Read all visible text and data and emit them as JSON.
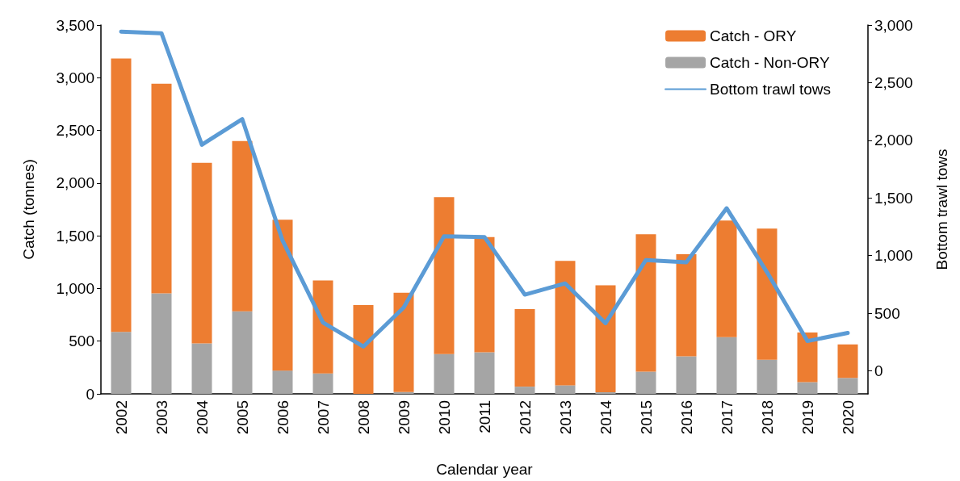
{
  "chart_data": {
    "type": "bar",
    "stacked": true,
    "xlabel": "Calendar year",
    "ylabel": "Catch (tonnes)",
    "y2label": "Bottom trawl tows",
    "categories": [
      "2002",
      "2003",
      "2004",
      "2005",
      "2006",
      "2007",
      "2008",
      "2009",
      "2010",
      "2011",
      "2012",
      "2013",
      "2014",
      "2015",
      "2016",
      "2017",
      "2018",
      "2019",
      "2020"
    ],
    "series": [
      {
        "name": "Catch - Non-ORY",
        "color": "#a5a5a5",
        "values": [
          588,
          953,
          478,
          784,
          221,
          194,
          null,
          17,
          377,
          395,
          68,
          81,
          15,
          211,
          357,
          538,
          324,
          111,
          151
        ]
      },
      {
        "name": "Catch - ORY",
        "color": "#ed7d31",
        "values": [
          2595,
          1989,
          1715,
          1615,
          1431,
          882,
          842,
          943,
          1489,
          1093,
          737,
          1181,
          1016,
          1303,
          968,
          1106,
          1245,
          472,
          319
        ]
      },
      {
        "name": "Bottom trawl tows",
        "type": "line",
        "axis": "y2",
        "color": "#5b9bd5",
        "marker": "none",
        "values": [
          2942,
          2929,
          1961,
          2184,
          1129,
          419,
          210,
          549,
          1168,
          1161,
          661,
          758,
          413,
          961,
          942,
          1410,
          855,
          258,
          329
        ]
      }
    ],
    "ylim": [
      0,
      3500
    ],
    "yticks": [
      0,
      500,
      {
        "value": 1000,
        "label": "1,000"
      },
      {
        "value": 1500,
        "label": "1,500"
      },
      {
        "value": 2000,
        "label": "2,000"
      },
      {
        "value": 2500,
        "label": "2,500"
      },
      {
        "value": 3000,
        "label": "3,000"
      },
      {
        "value": 3500,
        "label": "3,500"
      }
    ],
    "y2lim": [
      -200,
      3000
    ],
    "y2ticks": [
      0,
      500,
      {
        "value": 1000,
        "label": "1,000"
      },
      {
        "value": 1500,
        "label": "1,500"
      },
      {
        "value": 2000,
        "label": "2,000"
      },
      {
        "value": 2500,
        "label": "2,500"
      },
      {
        "value": 3000,
        "label": "3,000"
      }
    ],
    "grid": false,
    "legend": "top right"
  }
}
